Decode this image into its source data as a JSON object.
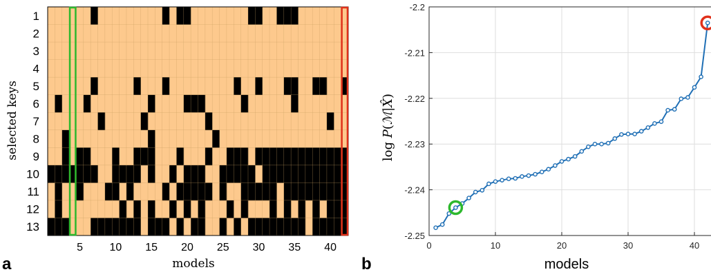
{
  "panel_labels": {
    "left": "a",
    "right": "b"
  },
  "colors": {
    "on": "#000000",
    "off": "#fdc98d",
    "grid": "#c9a063",
    "line": "#1f6fb5",
    "green": "#2db82d",
    "red": "#e0311b"
  },
  "chart_data": [
    {
      "type": "heatmap",
      "title": "",
      "xlabel": "models",
      "ylabel": "selected keys",
      "rows": 13,
      "cols": 42,
      "x_ticks": [
        5,
        10,
        15,
        20,
        25,
        30,
        35,
        40
      ],
      "y_ticks": [
        1,
        2,
        3,
        4,
        5,
        6,
        7,
        8,
        9,
        10,
        11,
        12,
        13
      ],
      "highlight_columns": [
        {
          "col": 4,
          "color": "green"
        },
        {
          "col": 42,
          "color": "red"
        }
      ],
      "on_cells": {
        "1": [
          7,
          17,
          19,
          20,
          29,
          30,
          33,
          34,
          35
        ],
        "5": [
          7,
          13,
          17,
          27,
          30,
          34,
          35,
          38,
          39,
          42
        ],
        "6": [
          2,
          6,
          15,
          20,
          21,
          22,
          28,
          35
        ],
        "7": [
          8,
          14,
          23,
          40
        ],
        "8": [
          3,
          15,
          24
        ],
        "9": [
          3,
          5,
          6,
          10,
          13,
          14,
          15,
          19,
          23,
          26,
          27,
          28,
          30,
          31,
          32,
          33,
          34,
          35,
          36,
          37,
          38,
          39,
          40,
          41,
          42
        ],
        "10": [
          1,
          2,
          3,
          4,
          5,
          6,
          7,
          10,
          11,
          12,
          13,
          15,
          18,
          20,
          21,
          22,
          25,
          26,
          27,
          28,
          29,
          31,
          32,
          33,
          34,
          35,
          36,
          37,
          38,
          39,
          40,
          41,
          42
        ],
        "11": [
          2,
          5,
          9,
          10,
          12,
          17,
          19,
          20,
          21,
          22,
          23,
          25,
          28,
          29,
          30,
          31,
          32,
          34,
          35,
          36,
          37,
          38,
          39,
          40,
          41,
          42
        ],
        "12": [
          2,
          11,
          13,
          15,
          18,
          20,
          22,
          26,
          28,
          32,
          34,
          36,
          38,
          40,
          41,
          42
        ],
        "13": [
          1,
          2,
          3,
          7,
          8,
          9,
          10,
          11,
          12,
          13,
          15,
          16,
          17,
          19,
          21,
          22,
          25,
          27,
          29,
          30,
          31,
          32,
          33,
          34,
          35,
          36,
          38,
          39,
          40,
          41,
          42
        ]
      }
    },
    {
      "type": "line",
      "title": "",
      "xlabel": "models",
      "ylabel_tex": "log P(M|X̂)",
      "xlim": [
        0,
        42.5
      ],
      "ylim": [
        -2.25,
        -2.2
      ],
      "x_ticks": [
        0,
        10,
        20,
        30,
        40
      ],
      "y_ticks": [
        -2.25,
        -2.24,
        -2.23,
        -2.22,
        -2.21,
        -2.2
      ],
      "y_tick_labels": [
        "-2.25",
        "-2.24",
        "-2.23",
        "-2.22",
        "-2.21",
        "-2.2"
      ],
      "grid": true,
      "x": [
        1,
        2,
        3,
        4,
        5,
        6,
        7,
        8,
        9,
        10,
        11,
        12,
        13,
        14,
        15,
        16,
        17,
        18,
        19,
        20,
        21,
        22,
        23,
        24,
        25,
        26,
        27,
        28,
        29,
        30,
        31,
        32,
        33,
        34,
        35,
        36,
        37,
        38,
        39,
        40,
        41,
        42
      ],
      "y": [
        -2.2483,
        -2.2476,
        -2.2452,
        -2.2439,
        -2.243,
        -2.2418,
        -2.2405,
        -2.2401,
        -2.2387,
        -2.2382,
        -2.2379,
        -2.2376,
        -2.2375,
        -2.2371,
        -2.2369,
        -2.2366,
        -2.2361,
        -2.2355,
        -2.2347,
        -2.2338,
        -2.2333,
        -2.2327,
        -2.2316,
        -2.2306,
        -2.23,
        -2.23,
        -2.2298,
        -2.2288,
        -2.2279,
        -2.2278,
        -2.2278,
        -2.2272,
        -2.2264,
        -2.2255,
        -2.2251,
        -2.2226,
        -2.2224,
        -2.2201,
        -2.2198,
        -2.2176,
        -2.2153,
        -2.2035
      ],
      "highlight_points": [
        {
          "x": 4,
          "color": "green"
        },
        {
          "x": 42,
          "color": "red"
        }
      ]
    }
  ]
}
